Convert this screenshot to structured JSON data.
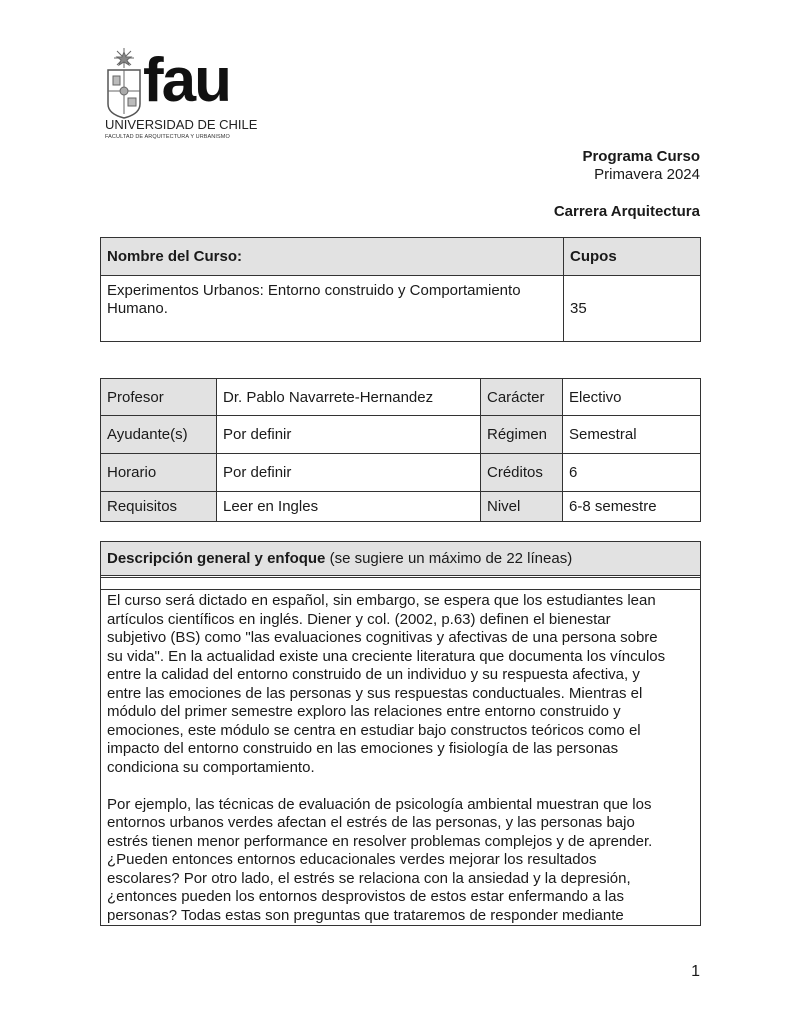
{
  "logo": {
    "mark": "fau",
    "university": "UNIVERSIDAD DE CHILE",
    "faculty": "FACULTAD DE ARQUITECTURA Y URBANISMO"
  },
  "header": {
    "title": "Programa Curso",
    "term": "Primavera 2024",
    "career": "Carrera Arquitectura"
  },
  "course_table": {
    "name_label": "Nombre del Curso:",
    "cupos_label": "Cupos",
    "name_lines": [
      "Experimentos Urbanos: Entorno construido y Comportamiento",
      "Humano."
    ],
    "cupos": "35"
  },
  "info_table": [
    {
      "label": "Profesor",
      "value": "Dr. Pablo Navarrete-Hernandez",
      "label2": "Carácter",
      "value2": "Electivo"
    },
    {
      "label": "Ayudante(s)",
      "value": "Por definir",
      "label2": "Régimen",
      "value2": "Semestral"
    },
    {
      "label": "Horario",
      "value": "Por definir",
      "label2": "Créditos",
      "value2": "6"
    },
    {
      "label": "Requisitos",
      "value": "Leer en Ingles",
      "label2": "Nivel",
      "value2": "6-8 semestre"
    }
  ],
  "description": {
    "title_bold": "Descripción general y enfoque",
    "title_note": " (se sugiere un máximo de 22 líneas)",
    "p1": [
      "El curso será dictado en español, sin embargo, se espera que los estudiantes lean",
      "artículos científicos en inglés. Diener y col. (2002, p.63) definen el bienestar",
      "subjetivo (BS) como \"las evaluaciones cognitivas y afectivas de una persona sobre",
      "su vida\". En la actualidad existe una creciente literatura que documenta los vínculos",
      "entre la calidad del entorno construido de un individuo y su respuesta afectiva, y",
      "entre las emociones de las personas y sus respuestas conductuales. Mientras el",
      "módulo del primer semestre exploro las relaciones entre entorno construido y",
      "emociones, este módulo se centra en estudiar bajo constructos teóricos como el",
      "impacto del entorno construido en las emociones y fisiología de las personas",
      "condiciona su comportamiento."
    ],
    "p2": [
      "Por ejemplo, las técnicas de evaluación de psicología ambiental muestran que los",
      "entornos urbanos verdes afectan el estrés de las personas, y las personas bajo",
      "estrés tienen menor performance en resolver problemas complejos y de aprender.",
      "¿Pueden entonces entornos educacionales verdes mejorar los resultados",
      "escolares? Por otro lado, el estrés se relaciona con la ansiedad y la depresión,",
      "¿entonces pueden los entornos desprovistos de estos estar enfermando a las",
      "personas? Todas estas son preguntas que trataremos de responder mediante"
    ]
  },
  "page_number": "1"
}
